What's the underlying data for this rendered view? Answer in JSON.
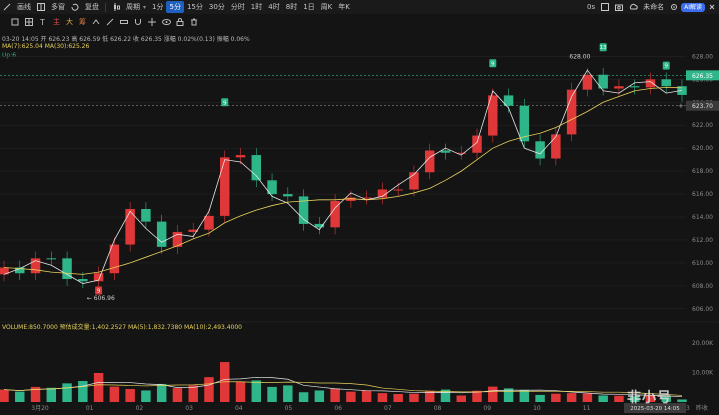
{
  "toolbar": {
    "left_items": [
      "画线",
      "多窗",
      "复盘"
    ],
    "period_label": "周期",
    "periods": [
      "1分",
      "5分",
      "15分",
      "30分",
      "分时",
      "1时",
      "4时",
      "8时",
      "1日",
      "周K",
      "年K"
    ],
    "active_period": "5分",
    "right_items": [
      "0s",
      "未命名",
      "AI解读"
    ]
  },
  "toolbar2": {
    "items": [
      "主",
      "大",
      "筹"
    ]
  },
  "info": {
    "ohlc": "03-20 14:05 开 626.23 高 626.59 低 626.22 收 626.35 涨幅 0.02%(0.13) 振幅 0.06%",
    "ma_line": "MA(7):625.04  MA(30):625.26",
    "up_label": "Up:6",
    "vol_line": "VOLUME:850.7000  预估成交量:1,402.2527  MA(5):1,832.7380  MA(10):2,493.4000"
  },
  "annotations": {
    "high_label": "628.00",
    "low_label": "606.96",
    "current_price": "626.35",
    "crosshair_price": "623.70",
    "crosshair_time": "2025-03-20 14:05",
    "markers": [
      "9",
      "9",
      "9",
      "13",
      "9"
    ],
    "yesterday": "昨收"
  },
  "colors": {
    "up": "#e03838",
    "down": "#2fb58a",
    "ma7": "#e6e6e6",
    "ma30": "#e8d25a",
    "bg": "#141414"
  },
  "watermark": "非小号",
  "chart_data": {
    "type": "candlestick",
    "title": "",
    "x_ticks": [
      "3月20",
      "01",
      "02",
      "03",
      "04",
      "05",
      "06",
      "07",
      "08",
      "09",
      "10",
      "11",
      "12",
      "13"
    ],
    "y_ticks": [
      628.0,
      626.0,
      624.0,
      622.0,
      620.0,
      618.0,
      616.0,
      614.0,
      612.0,
      610.0,
      608.0,
      606.0
    ],
    "vol_ticks": [
      "20.00K",
      "10.00K"
    ],
    "ylim": [
      605.2,
      630.3
    ],
    "series": [
      {
        "name": "MA(7)",
        "values": [
          609.0,
          609.5,
          610.2,
          609.8,
          609.0,
          608.2,
          608.5,
          612.0,
          614.5,
          613.0,
          611.8,
          612.5,
          612.3,
          614.5,
          619.0,
          618.8,
          617.6,
          615.8,
          615.2,
          613.8,
          612.9,
          614.8,
          616.1,
          615.5,
          615.8,
          616.8,
          617.7,
          619.2,
          620.0,
          619.4,
          620.5,
          625.0,
          623.5,
          620.0,
          619.5,
          621.0,
          624.5,
          626.8,
          625.0,
          624.8,
          625.7,
          625.8,
          624.8,
          625.04
        ]
      },
      {
        "name": "MA(30)",
        "values": [
          609.6,
          609.5,
          609.4,
          609.2,
          609.1,
          609.0,
          609.2,
          609.6,
          610.0,
          610.5,
          611.0,
          611.5,
          612.1,
          612.6,
          613.5,
          614.1,
          614.6,
          615.0,
          615.3,
          615.4,
          615.5,
          615.5,
          615.6,
          615.5,
          615.6,
          615.8,
          616.1,
          616.5,
          617.2,
          618.0,
          619.0,
          620.0,
          620.6,
          621.0,
          621.3,
          621.8,
          622.5,
          623.2,
          624.0,
          624.5,
          625.0,
          625.2,
          625.3,
          625.26
        ]
      }
    ],
    "volume": [
      4200,
      3500,
      5100,
      4800,
      6300,
      7100,
      9800,
      5200,
      4400,
      3900,
      6100,
      4700,
      5600,
      8400,
      13500,
      6900,
      7300,
      5100,
      5600,
      3300,
      3900,
      4500,
      3500,
      3900,
      3000,
      2700,
      2800,
      3600,
      4200,
      2200,
      3800,
      5200,
      4600,
      4100,
      2400,
      2800,
      3000,
      2900,
      2200,
      2100,
      1900,
      2300,
      1800,
      850.7
    ]
  }
}
